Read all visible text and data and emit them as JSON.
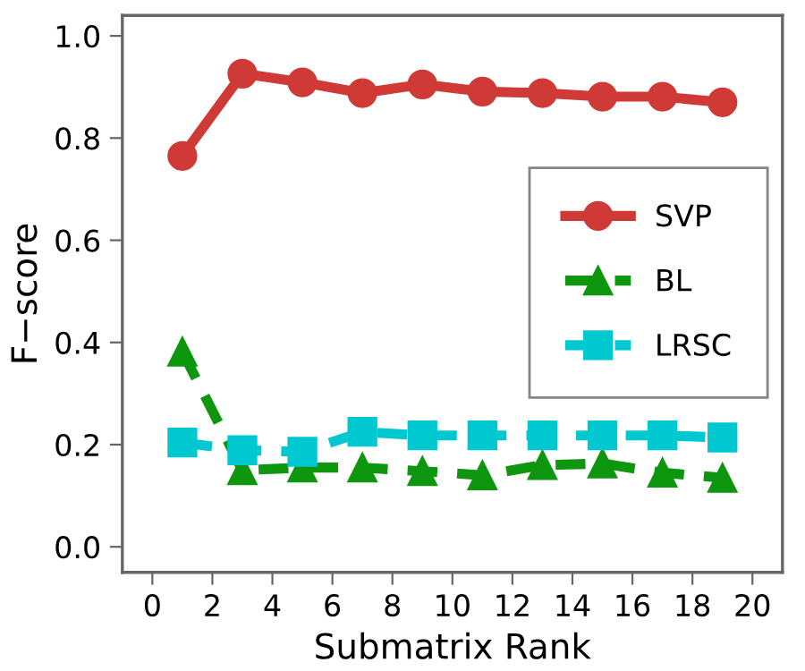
{
  "chart_data": {
    "type": "line",
    "xlabel": "Submatrix Rank",
    "ylabel": "F−score",
    "x": [
      1,
      3,
      5,
      7,
      9,
      11,
      13,
      15,
      17,
      19
    ],
    "series": [
      {
        "name": "SVP",
        "color": "#d03a36",
        "marker": "circle",
        "line_style": "solid",
        "values": [
          0.765,
          0.926,
          0.909,
          0.888,
          0.905,
          0.891,
          0.888,
          0.881,
          0.881,
          0.87
        ]
      },
      {
        "name": "BL",
        "color": "#0e960e",
        "marker": "triangle",
        "line_style": "dashed",
        "values": [
          0.382,
          0.15,
          0.155,
          0.155,
          0.148,
          0.14,
          0.16,
          0.163,
          0.145,
          0.135
        ]
      },
      {
        "name": "LRSC",
        "color": "#00c8d0",
        "marker": "square",
        "line_style": "dashed",
        "values": [
          0.204,
          0.189,
          0.186,
          0.225,
          0.218,
          0.218,
          0.218,
          0.218,
          0.218,
          0.214
        ]
      }
    ],
    "xlim": [
      -1,
      21
    ],
    "xticks": [
      0,
      2,
      4,
      6,
      8,
      10,
      12,
      14,
      16,
      18,
      20
    ],
    "ylim": [
      -0.05,
      1.04
    ],
    "yticks": [
      {
        "value": 0,
        "label": "0.0"
      },
      {
        "value": 0.2,
        "label": "0.2"
      },
      {
        "value": 0.4,
        "label": "0.4"
      },
      {
        "value": 0.6,
        "label": "0.6"
      },
      {
        "value": 0.8,
        "label": "0.8"
      },
      {
        "value": 1,
        "label": "1.0"
      }
    ],
    "grid": false,
    "legend": "right"
  }
}
